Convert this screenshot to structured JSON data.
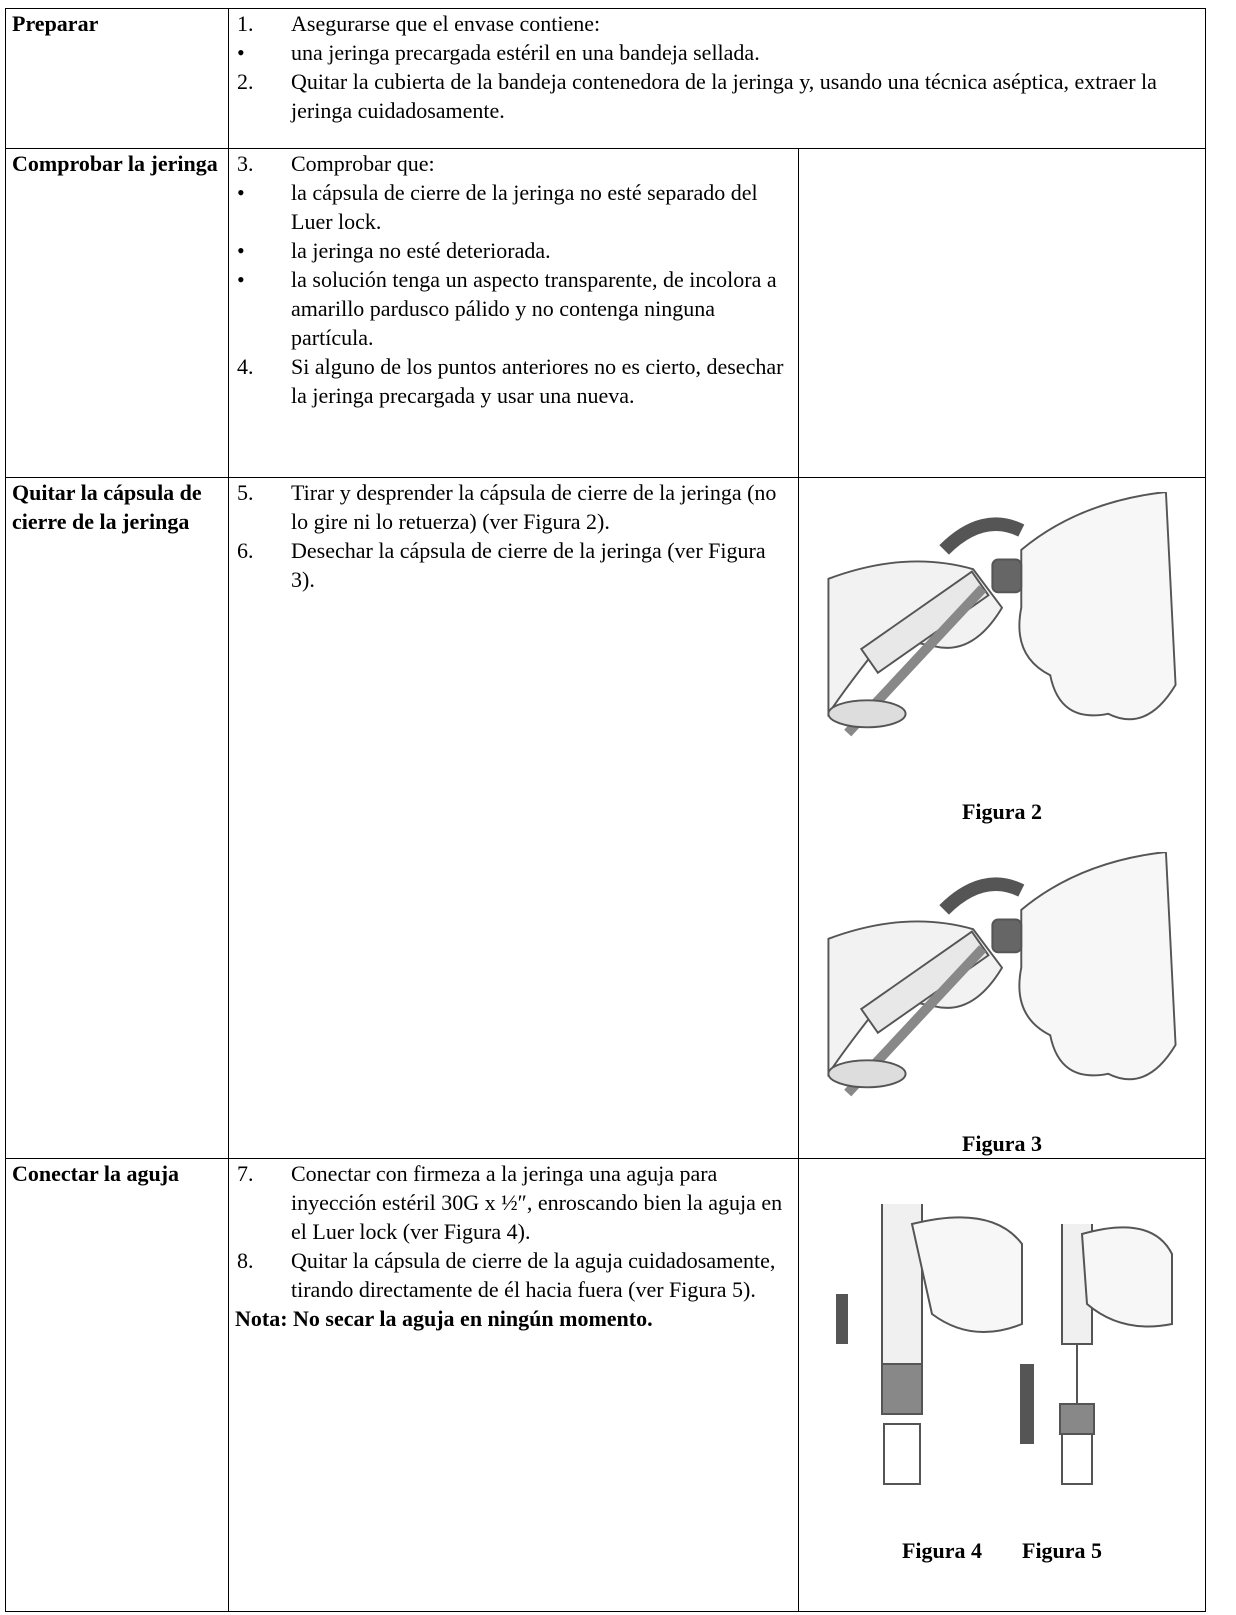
{
  "table": {
    "rows": [
      {
        "label": "Preparar",
        "items": [
          {
            "marker": "1.",
            "text": "Asegurarse que el envase contiene:"
          },
          {
            "marker": "•",
            "text": "una jeringa precargada estéril en una bandeja sellada."
          },
          {
            "marker": "2.",
            "text": "Quitar la cubierta de la bandeja contenedora de la jeringa y, usando una técnica aséptica, extraer la jeringa cuidadosamente."
          }
        ]
      },
      {
        "label": "Comprobar la jeringa",
        "items": [
          {
            "marker": "3.",
            "text": "Comprobar que:"
          },
          {
            "marker": "•",
            "text": "la cápsula de cierre de la jeringa no esté separado del Luer lock."
          },
          {
            "marker": "•",
            "text": "la jeringa no esté deteriorada."
          },
          {
            "marker": "•",
            "text": "la solución tenga un aspecto transparente, de incolora a amarillo pardusco pálido y no contenga ninguna partícula."
          },
          {
            "marker": "4.",
            "text": "Si alguno de los puntos anteriores no es cierto, desechar la jeringa precargada y usar una nueva."
          }
        ]
      },
      {
        "label": "Quitar la cápsula de cierre de la jeringa",
        "items": [
          {
            "marker": "5.",
            "text": "Tirar y desprender la cápsula de cierre de la jeringa (no lo gire ni lo retuerza) (ver Figura 2)."
          },
          {
            "marker": "6.",
            "text": "Desechar la cápsula de cierre de la jeringa (ver Figura 3)."
          }
        ],
        "figures": [
          {
            "caption": "Figura 2"
          },
          {
            "caption": "Figura 3"
          }
        ]
      },
      {
        "label": "Conectar la aguja",
        "items": [
          {
            "marker": "7.",
            "text": "Conectar con firmeza a la jeringa una aguja para inyección estéril 30G x ½″, enroscando bien la aguja en el Luer lock (ver Figura 4)."
          },
          {
            "marker": "8.",
            "text": "Quitar la cápsula de cierre de la aguja cuidadosamente, tirando directamente de él hacia fuera (ver Figura 5)."
          }
        ],
        "note": "Nota: No secar la aguja en ningún momento.",
        "figures": [
          {
            "caption": "Figura 4"
          },
          {
            "caption": "Figura 5"
          }
        ]
      }
    ]
  }
}
